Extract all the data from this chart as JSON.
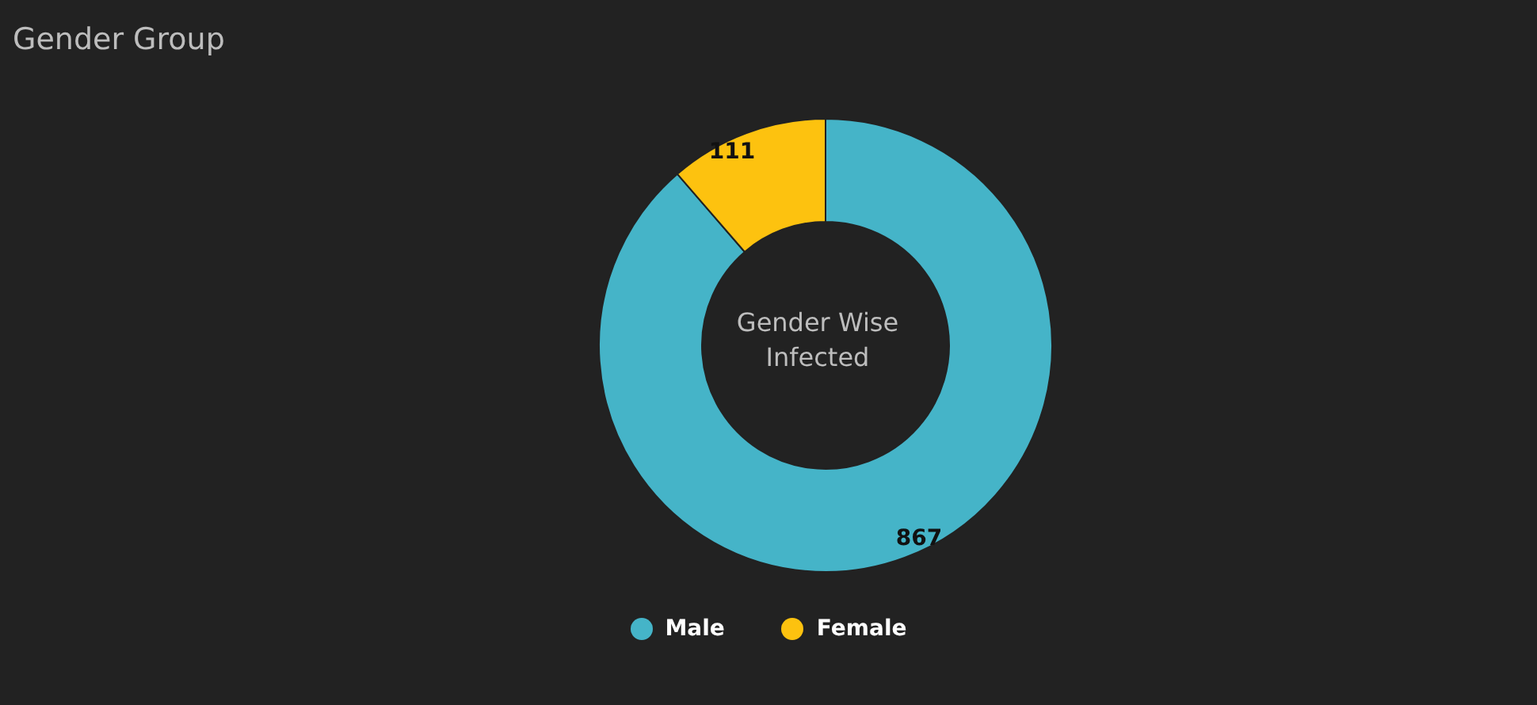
{
  "chart_data": {
    "type": "donut",
    "title": "Gender Group",
    "subtitle": "Gender Wise Infected",
    "categories": [
      "Male",
      "Female"
    ],
    "values": [
      867,
      111
    ],
    "colors": [
      "#45b4c8",
      "#fdc20f"
    ],
    "data_labels": true,
    "legend": "bottom"
  }
}
